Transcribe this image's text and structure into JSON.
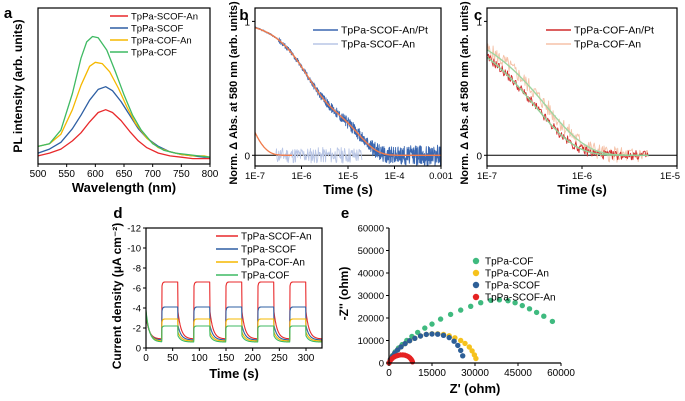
{
  "chart_data": [
    {
      "id": "a",
      "panel_label": "a",
      "type": "line",
      "xlabel": "Wavelength (nm)",
      "ylabel": "PL intensity (arb. units)",
      "xlim": [
        500,
        800
      ],
      "ylim": [
        0,
        1.15
      ],
      "xticks": [
        "500",
        "550",
        "600",
        "650",
        "700",
        "750",
        "800"
      ],
      "legend_loc": "top-right",
      "series": [
        {
          "name": "TpPa-SCOF-An",
          "color": "#e8292b",
          "x": [
            500,
            520,
            540,
            560,
            575,
            590,
            605,
            618,
            630,
            645,
            660,
            675,
            690,
            710,
            730,
            750,
            770,
            790,
            800
          ],
          "y": [
            0.06,
            0.08,
            0.11,
            0.17,
            0.23,
            0.31,
            0.38,
            0.4,
            0.38,
            0.32,
            0.24,
            0.17,
            0.12,
            0.08,
            0.06,
            0.05,
            0.04,
            0.04,
            0.04
          ]
        },
        {
          "name": "TpPa-SCOF",
          "color": "#2e5fa3",
          "x": [
            500,
            520,
            540,
            560,
            575,
            590,
            605,
            618,
            630,
            645,
            660,
            675,
            690,
            710,
            730,
            750,
            770,
            790,
            800
          ],
          "y": [
            0.08,
            0.11,
            0.16,
            0.26,
            0.36,
            0.47,
            0.55,
            0.57,
            0.54,
            0.46,
            0.36,
            0.26,
            0.19,
            0.13,
            0.09,
            0.07,
            0.06,
            0.05,
            0.05
          ]
        },
        {
          "name": "TpPa-COF-An",
          "color": "#f5b800",
          "x": [
            500,
            520,
            540,
            560,
            575,
            590,
            600,
            612,
            625,
            640,
            655,
            670,
            690,
            710,
            730,
            750,
            770,
            790,
            800
          ],
          "y": [
            0.13,
            0.15,
            0.22,
            0.4,
            0.58,
            0.72,
            0.75,
            0.74,
            0.68,
            0.56,
            0.42,
            0.3,
            0.19,
            0.12,
            0.09,
            0.07,
            0.06,
            0.06,
            0.05
          ]
        },
        {
          "name": "TpPa-COF",
          "color": "#3fba63",
          "x": [
            500,
            520,
            540,
            560,
            575,
            585,
            595,
            605,
            620,
            635,
            650,
            665,
            680,
            700,
            720,
            740,
            760,
            780,
            800
          ],
          "y": [
            0.13,
            0.15,
            0.25,
            0.52,
            0.78,
            0.9,
            0.94,
            0.93,
            0.84,
            0.68,
            0.51,
            0.36,
            0.25,
            0.15,
            0.1,
            0.08,
            0.07,
            0.06,
            0.05
          ]
        }
      ]
    },
    {
      "id": "b",
      "panel_label": "b",
      "type": "line",
      "xlabel": "Time (s)",
      "ylabel": "Norm. Δ Abs. at 580 nm (arb. units)",
      "xscale": "log",
      "xlim": [
        1e-07,
        0.001
      ],
      "ylim": [
        -0.08,
        1.1
      ],
      "xticks": [
        "1E-7",
        "1E-6",
        "1E-5",
        "1E-4",
        "0.001"
      ],
      "yticks": [
        "0",
        "1"
      ],
      "legend_loc": "top-right",
      "series": [
        {
          "name": "TpPa-SCOF-An/Pt",
          "color": "#3a67b1"
        },
        {
          "name": "TpPa-SCOF-An",
          "color": "#b9c6e6"
        }
      ],
      "fits": [
        {
          "color": "#f07a4a",
          "description": "fit to TpPa-SCOF-An/Pt"
        },
        {
          "color": "#f07a4a",
          "description": "fit to TpPa-SCOF-An"
        }
      ]
    },
    {
      "id": "c",
      "panel_label": "c",
      "type": "line",
      "xlabel": "Time (s)",
      "ylabel": "Norm. Δ Abs. at 580 nm (arb. units)",
      "xscale": "log",
      "xlim": [
        1e-07,
        1e-05
      ],
      "ylim": [
        -0.08,
        1.1
      ],
      "xticks": [
        "1E-7",
        "1E-6",
        "1E-5"
      ],
      "yticks": [
        "0",
        "1"
      ],
      "legend_loc": "top-right",
      "series": [
        {
          "name": "TpPa-COF-An/Pt",
          "color": "#d12b2b"
        },
        {
          "name": "TpPa-COF-An",
          "color": "#f5c2a8"
        }
      ]
    },
    {
      "id": "d",
      "panel_label": "d",
      "type": "line",
      "xlabel": "Time (s)",
      "ylabel": "Current density (μA cm⁻²)",
      "xlim": [
        0,
        330
      ],
      "ylim": [
        0,
        -12
      ],
      "xticks": [
        "0",
        "50",
        "100",
        "150",
        "200",
        "250",
        "300"
      ],
      "yticks": [
        "0",
        "-2",
        "-4",
        "-6",
        "-8",
        "-10",
        "-12"
      ],
      "legend_loc": "top-right",
      "light_on_intervals": [
        [
          30,
          60
        ],
        [
          90,
          120
        ],
        [
          150,
          180
        ],
        [
          210,
          240
        ],
        [
          270,
          300
        ]
      ],
      "series": [
        {
          "name": "TpPa-SCOF-An",
          "color": "#e8292b",
          "plateau": -6.6,
          "spike": -6.2,
          "baseline": -0.9
        },
        {
          "name": "TpPa-SCOF",
          "color": "#2e5fa3",
          "plateau": -4.1,
          "spike": -3.7,
          "baseline": -0.8
        },
        {
          "name": "TpPa-COF-An",
          "color": "#f5b800",
          "plateau": -2.9,
          "spike": -2.6,
          "baseline": -0.7
        },
        {
          "name": "TpPa-COF",
          "color": "#3fba63",
          "plateau": -2.2,
          "spike": -2.0,
          "baseline": -0.6
        }
      ]
    },
    {
      "id": "e",
      "panel_label": "e",
      "type": "scatter",
      "xlabel": "Z' (ohm)",
      "ylabel": "-Z'' (ohm)",
      "xlim": [
        0,
        60000
      ],
      "ylim": [
        0,
        60000
      ],
      "xticks": [
        "0",
        "15000",
        "30000",
        "45000",
        "60000"
      ],
      "yticks": [
        "0",
        "10000",
        "20000",
        "30000",
        "40000",
        "50000",
        "60000"
      ],
      "legend_loc": "top-left",
      "series": [
        {
          "name": "TpPa-COF",
          "color": "#3fba7f",
          "x": [
            0,
            600,
            1300,
            2200,
            3300,
            4600,
            6200,
            8000,
            10000,
            12500,
            15000,
            18000,
            21500,
            25000,
            28500,
            32000,
            35500,
            38500,
            41500,
            44000,
            46500,
            49000,
            51500,
            54000,
            57000
          ],
          "y": [
            0,
            1800,
            3400,
            5000,
            6600,
            8200,
            10000,
            11800,
            13600,
            15500,
            17300,
            19500,
            21600,
            23500,
            25200,
            26800,
            27800,
            28100,
            27700,
            26800,
            25500,
            24100,
            22500,
            20800,
            18500
          ]
        },
        {
          "name": "TpPa-COF-An",
          "color": "#f6c21c",
          "x": [
            0,
            500,
            1200,
            2000,
            3000,
            4200,
            5600,
            7200,
            9000,
            11000,
            13000,
            15000,
            17000,
            19000,
            21000,
            23000,
            25000,
            26500,
            28000,
            29000,
            29800,
            30300
          ],
          "y": [
            0,
            1600,
            3000,
            4400,
            5800,
            7200,
            8600,
            9900,
            11000,
            12000,
            12700,
            13000,
            13000,
            12700,
            12100,
            11200,
            10000,
            8700,
            7100,
            5400,
            3600,
            2000
          ]
        },
        {
          "name": "TpPa-SCOF",
          "color": "#2d5f97",
          "x": [
            0,
            500,
            1200,
            2000,
            3000,
            4200,
            5600,
            7200,
            9000,
            11000,
            13000,
            15000,
            17000,
            19000,
            21000,
            22700,
            24000,
            25000,
            25700
          ],
          "y": [
            0,
            1600,
            3000,
            4400,
            5800,
            7200,
            8600,
            9900,
            11000,
            12000,
            12700,
            12900,
            12800,
            12300,
            11300,
            9700,
            7800,
            5600,
            3200
          ]
        },
        {
          "name": "TpPa-SCOF-An",
          "color": "#e52222",
          "x": [
            0,
            300,
            700,
            1200,
            1800,
            2500,
            3200,
            4000,
            4800,
            5500,
            6200,
            6800,
            7300,
            7700,
            8000,
            8200
          ],
          "y": [
            0,
            800,
            1500,
            2100,
            2700,
            3100,
            3400,
            3600,
            3600,
            3500,
            3200,
            2800,
            2300,
            1700,
            1100,
            500
          ]
        }
      ]
    }
  ]
}
